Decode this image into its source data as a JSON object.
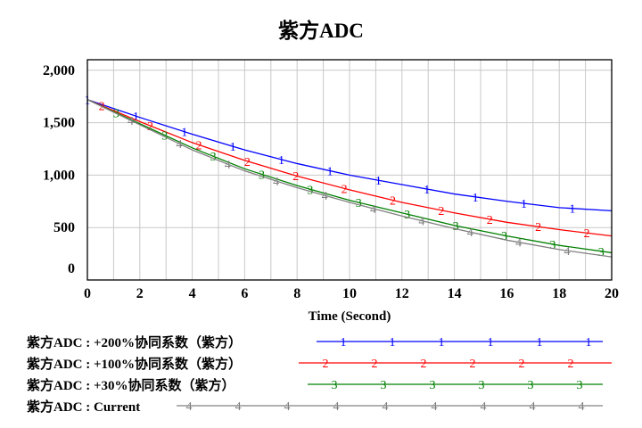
{
  "chart_data": {
    "type": "line",
    "title": "紫方ADC",
    "xlabel": "Time (Second)",
    "ylabel": "",
    "xlim": [
      0,
      20
    ],
    "ylim": [
      0,
      2100
    ],
    "xticks": [
      "0",
      "2",
      "4",
      "6",
      "8",
      "10",
      "12",
      "14",
      "16",
      "18",
      "20"
    ],
    "yticks": [
      "0",
      "500",
      "1,000",
      "1,500",
      "2,000"
    ],
    "grid": true,
    "legend_position": "bottom",
    "series": [
      {
        "name": "紫方ADC : +200%协同系数（紫方）",
        "marker": "1",
        "color": "#0000ff",
        "x": [
          0,
          2,
          4,
          6,
          8,
          10,
          12,
          14,
          16,
          18,
          20
        ],
        "y": [
          1720,
          1550,
          1390,
          1240,
          1110,
          1000,
          910,
          820,
          750,
          690,
          660
        ]
      },
      {
        "name": "紫方ADC : +100%协同系数（紫方）",
        "marker": "2",
        "color": "#ff0000",
        "x": [
          0,
          2,
          4,
          6,
          8,
          10,
          12,
          14,
          16,
          18,
          20
        ],
        "y": [
          1720,
          1510,
          1310,
          1140,
          990,
          860,
          740,
          640,
          550,
          480,
          420
        ]
      },
      {
        "name": "紫方ADC : +30%协同系数（紫方）",
        "marker": "3",
        "color": "#008000",
        "x": [
          0,
          2,
          4,
          6,
          8,
          10,
          12,
          14,
          16,
          18,
          20
        ],
        "y": [
          1720,
          1490,
          1260,
          1060,
          900,
          760,
          640,
          520,
          420,
          330,
          260
        ]
      },
      {
        "name": "紫方ADC : Current",
        "marker": "4",
        "color": "#808080",
        "x": [
          0,
          2,
          4,
          6,
          8,
          10,
          12,
          14,
          16,
          18,
          20
        ],
        "y": [
          1720,
          1480,
          1240,
          1040,
          880,
          740,
          610,
          490,
          380,
          290,
          220
        ]
      }
    ]
  }
}
